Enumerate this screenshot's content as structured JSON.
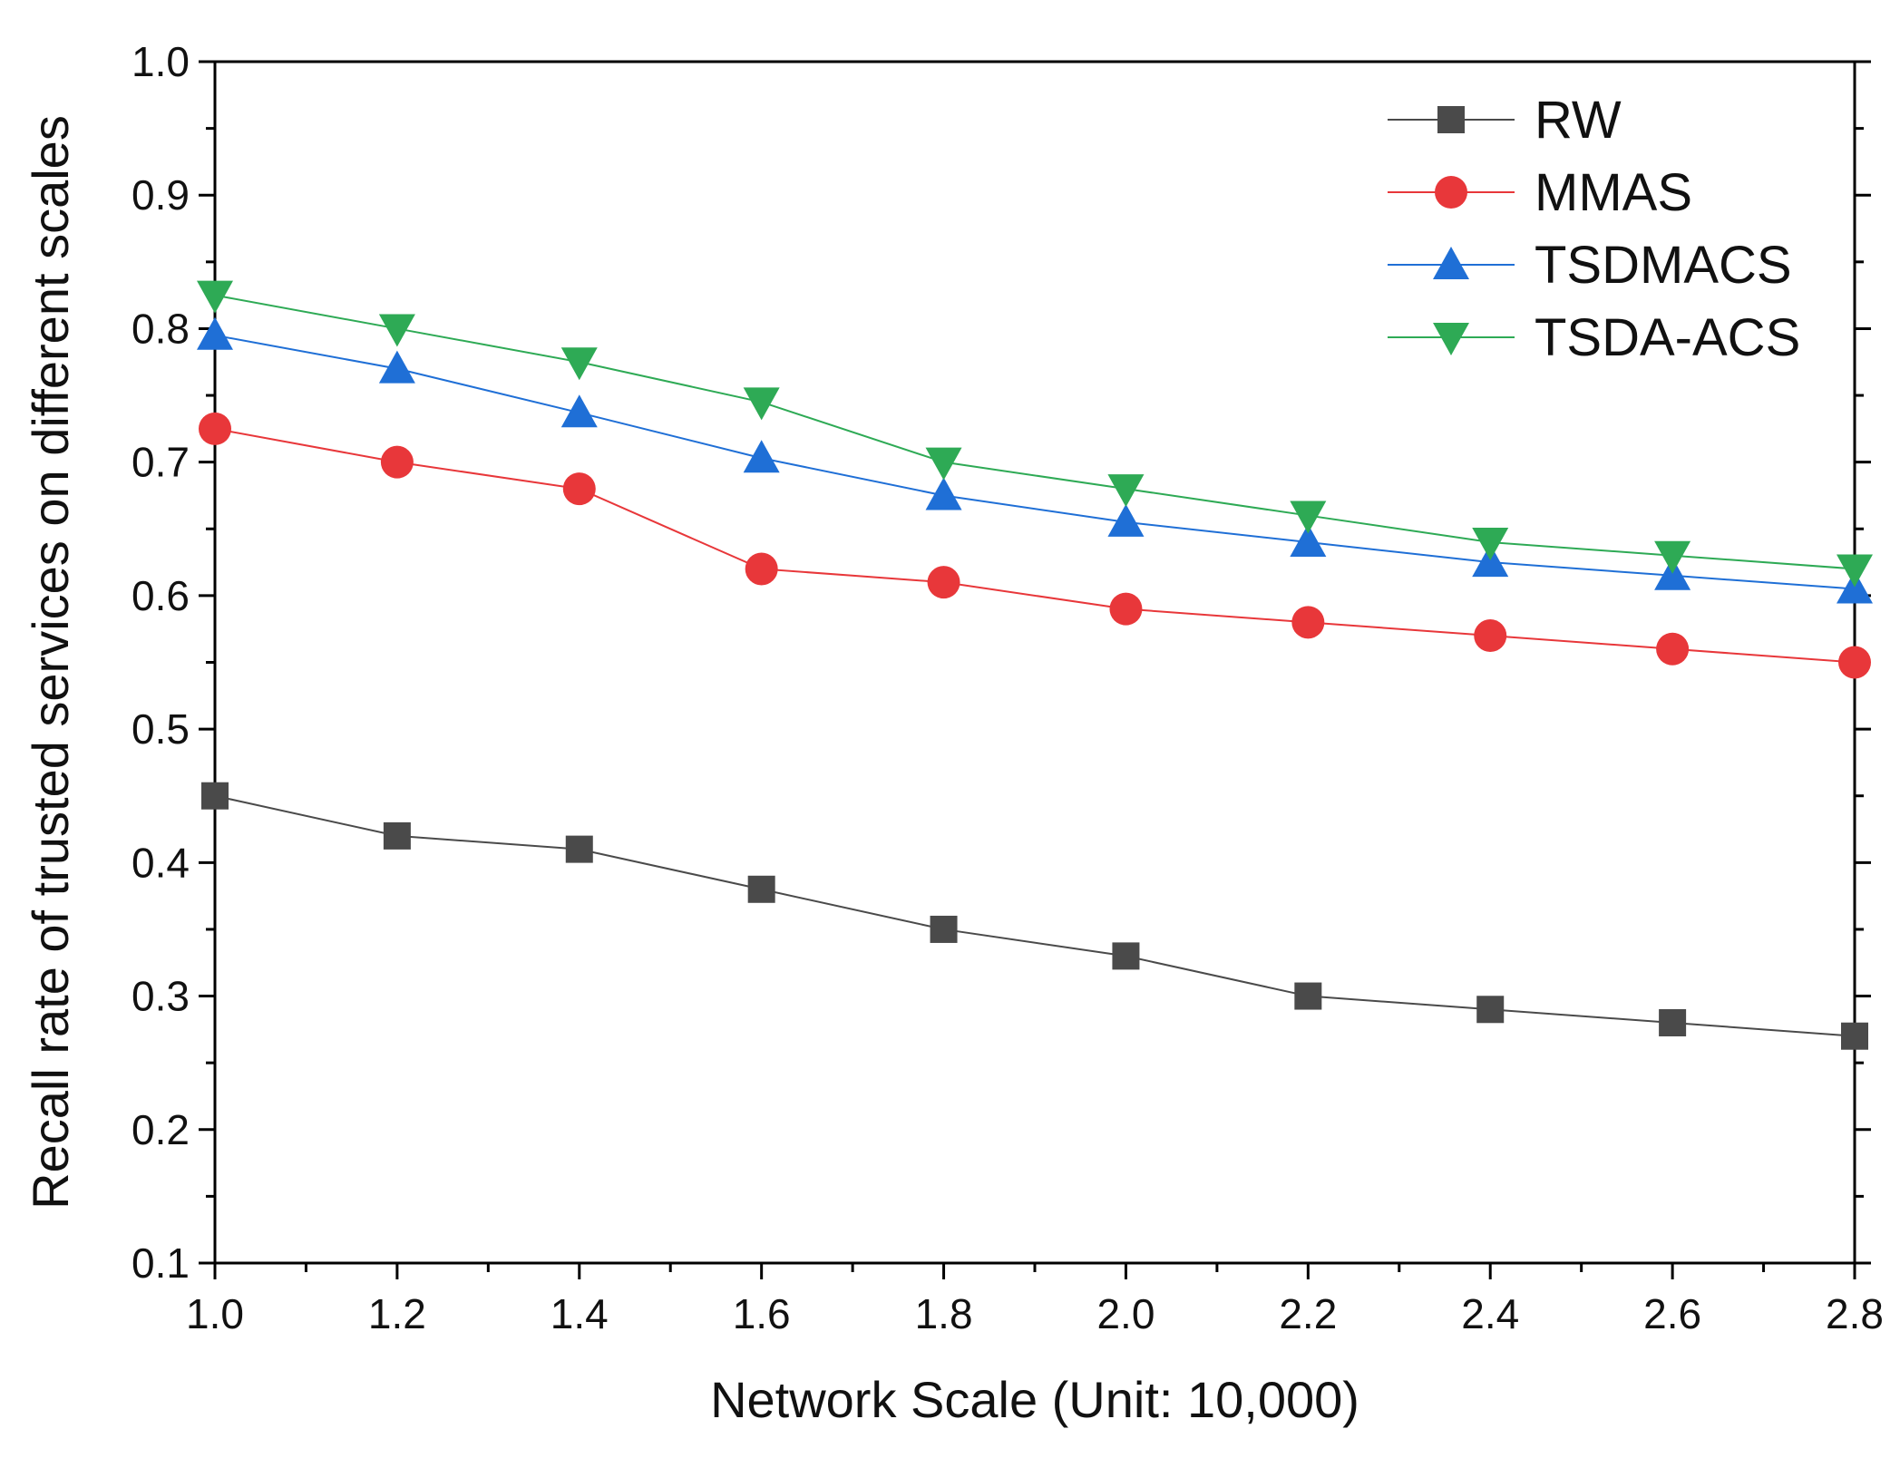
{
  "chart_data": {
    "type": "line",
    "title": "",
    "xlabel": "Network Scale (Unit: 10,000)",
    "ylabel": "Recall rate of trusted services on different scales",
    "xlim": [
      1.0,
      2.8
    ],
    "ylim": [
      0.1,
      1.0
    ],
    "x_ticks": [
      "1.0",
      "1.2",
      "1.4",
      "1.6",
      "1.8",
      "2.0",
      "2.2",
      "2.4",
      "2.6",
      "2.8"
    ],
    "y_ticks": [
      "0.1",
      "0.2",
      "0.3",
      "0.4",
      "0.5",
      "0.6",
      "0.7",
      "0.8",
      "0.9",
      "1.0"
    ],
    "grid": false,
    "legend_position": "top-right",
    "x": [
      1.0,
      1.2,
      1.4,
      1.6,
      1.8,
      2.0,
      2.2,
      2.4,
      2.6,
      2.8
    ],
    "series": [
      {
        "name": "RW",
        "color": "#4a4a4a",
        "marker": "square",
        "values": [
          0.45,
          0.42,
          0.41,
          0.38,
          0.35,
          0.33,
          0.3,
          0.29,
          0.28,
          0.27
        ]
      },
      {
        "name": "MMAS",
        "color": "#e8373a",
        "marker": "circle",
        "values": [
          0.725,
          0.7,
          0.68,
          0.62,
          0.61,
          0.59,
          0.58,
          0.57,
          0.56,
          0.55
        ]
      },
      {
        "name": "TSDMACS",
        "color": "#1f6fd6",
        "marker": "triangle-up",
        "values": [
          0.795,
          0.77,
          0.737,
          0.703,
          0.675,
          0.655,
          0.64,
          0.625,
          0.615,
          0.605
        ]
      },
      {
        "name": "TSDA-ACS",
        "color": "#2eaa55",
        "marker": "triangle-down",
        "values": [
          0.825,
          0.8,
          0.775,
          0.745,
          0.7,
          0.68,
          0.66,
          0.64,
          0.63,
          0.62
        ]
      }
    ]
  }
}
